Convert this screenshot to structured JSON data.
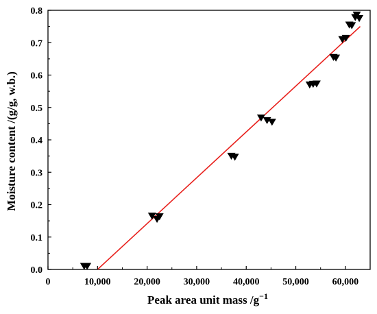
{
  "chart_data": {
    "type": "scatter",
    "xlabel": "Peak area unit mass /g",
    "xlabel_superscript": "−1",
    "ylabel": "Moisture content /(g/g, w.b.)",
    "xlim": [
      0,
      65000
    ],
    "ylim": [
      0,
      0.8
    ],
    "x_ticks": [
      0,
      10000,
      20000,
      30000,
      40000,
      50000,
      60000
    ],
    "x_tick_labels": [
      "0",
      "10,000",
      "20,000",
      "30,000",
      "40,000",
      "50,000",
      "60,000"
    ],
    "y_ticks": [
      0.0,
      0.1,
      0.2,
      0.3,
      0.4,
      0.5,
      0.6,
      0.7,
      0.8
    ],
    "y_tick_labels": [
      "0.0",
      "0.1",
      "0.2",
      "0.3",
      "0.4",
      "0.5",
      "0.6",
      "0.7",
      "0.8"
    ],
    "grid": false,
    "series": [
      {
        "marker": "down-triangle",
        "color": "#000000",
        "points": [
          [
            7300,
            0.01
          ],
          [
            7900,
            0.01
          ],
          [
            21000,
            0.165
          ],
          [
            22000,
            0.155
          ],
          [
            22500,
            0.163
          ],
          [
            37000,
            0.35
          ],
          [
            37700,
            0.347
          ],
          [
            43000,
            0.468
          ],
          [
            44200,
            0.46
          ],
          [
            45200,
            0.455
          ],
          [
            52800,
            0.57
          ],
          [
            53500,
            0.572
          ],
          [
            54200,
            0.573
          ],
          [
            57600,
            0.655
          ],
          [
            58100,
            0.653
          ],
          [
            59400,
            0.71
          ],
          [
            60100,
            0.714
          ],
          [
            60800,
            0.755
          ],
          [
            61300,
            0.753
          ],
          [
            62000,
            0.778
          ],
          [
            62300,
            0.786
          ],
          [
            62800,
            0.775
          ]
        ]
      },
      {
        "type": "line",
        "color": "#e8201c",
        "points": [
          [
            10000,
            0.0
          ],
          [
            63000,
            0.75
          ]
        ]
      }
    ]
  }
}
